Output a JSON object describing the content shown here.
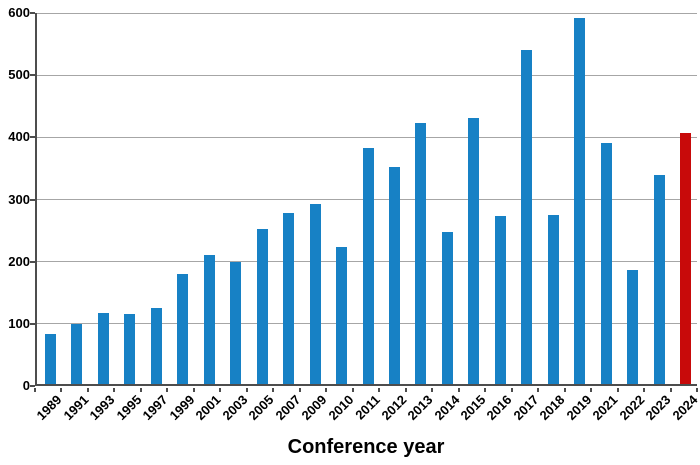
{
  "chart_data": {
    "type": "bar",
    "title": "",
    "xlabel": "Conference year",
    "ylabel": "",
    "ylim": [
      0,
      600
    ],
    "yticks": [
      0,
      100,
      200,
      300,
      400,
      500,
      600
    ],
    "grid": true,
    "legend": "none",
    "categories": [
      "1989",
      "1991",
      "1993",
      "1995",
      "1997",
      "1999",
      "2001",
      "2003",
      "2005",
      "2007",
      "2009",
      "2010",
      "2011",
      "2012",
      "2013",
      "2014",
      "2015",
      "2016",
      "2017",
      "2018",
      "2019",
      "2021",
      "2022",
      "2023",
      "2024"
    ],
    "values": [
      80,
      97,
      114,
      112,
      123,
      177,
      208,
      196,
      249,
      275,
      289,
      220,
      379,
      349,
      420,
      245,
      428,
      270,
      538,
      272,
      589,
      387,
      184,
      336,
      404
    ],
    "highlight_category": "2024",
    "colors": {
      "bar": "#1781c5",
      "highlight": "#c80a0a",
      "gridline": "#a6a6a6",
      "axis": "#4d4d4d",
      "text": "#000000",
      "background": "#ffffff"
    }
  }
}
